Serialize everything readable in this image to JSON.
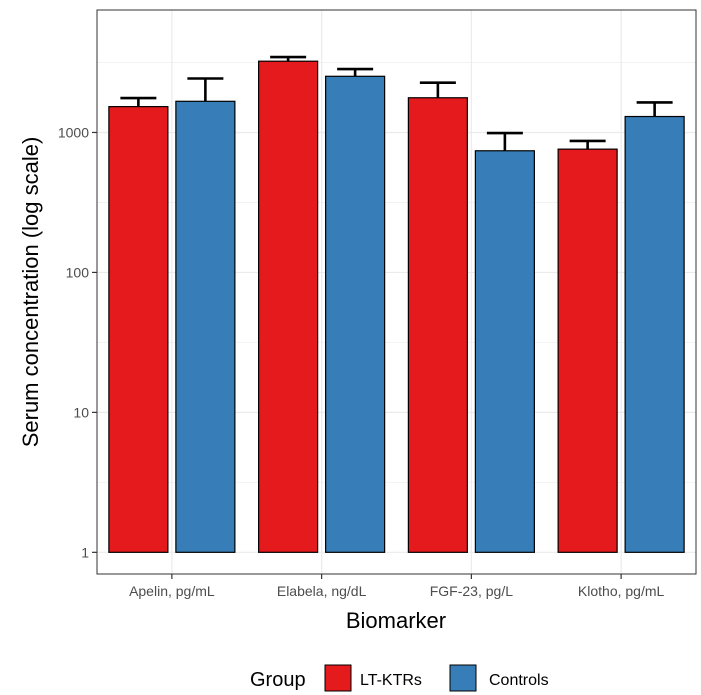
{
  "chart_data": {
    "type": "bar",
    "xlabel": "Biomarker",
    "ylabel": "Serum concentration (log scale)",
    "y_scale": "log10",
    "ylim": [
      0.7,
      7500
    ],
    "yticks": [
      1,
      10,
      100,
      1000
    ],
    "ytick_labels": [
      "1",
      "10",
      "100",
      "1000"
    ],
    "categories": [
      "Apelin, pg/mL",
      "Elabela, ng/dL",
      "FGF-23, pg/L",
      "Klotho, pg/mL"
    ],
    "series": [
      {
        "name": "LT-KTRs",
        "color": "#e41a1c",
        "values": [
          1530,
          3230,
          1770,
          760
        ],
        "error_upper": [
          1760,
          3460,
          2270,
          870
        ]
      },
      {
        "name": "Controls",
        "color": "#377eb8",
        "values": [
          1670,
          2520,
          740,
          1300
        ],
        "error_upper": [
          2430,
          2840,
          990,
          1640
        ]
      }
    ],
    "grid": true,
    "legend": {
      "title": "Group",
      "position": "bottom"
    }
  }
}
